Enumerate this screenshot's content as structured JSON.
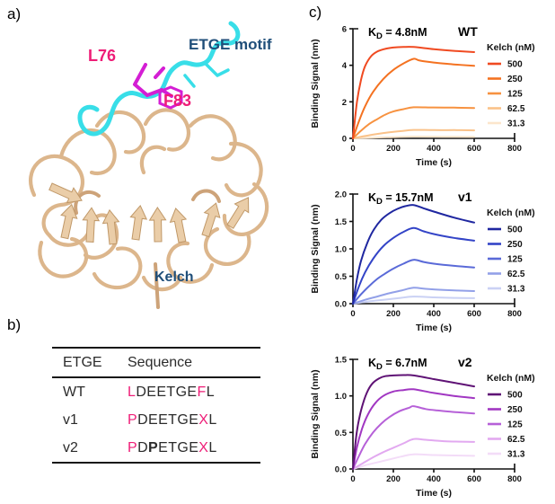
{
  "figure": {
    "panel_a_label": "a)",
    "panel_b_label": "b)",
    "panel_c_label": "c)"
  },
  "panel_a": {
    "residue_label_1": "L76",
    "motif_label": "ETGE motif",
    "residue_label_2": "F83",
    "domain_label": "Kelch",
    "colors": {
      "ribbon": "#DCB68C",
      "ribbon_fill": "#EACDA8",
      "peptide_cyan": "#38DEE8",
      "residue_magenta": "#D41ED4",
      "residue_text_pink": "#EE1D77",
      "domain_text_blue": "#1F4E79"
    }
  },
  "panel_b": {
    "headers": [
      "ETGE",
      "Sequence"
    ],
    "pink": "#EE1D77",
    "rows": [
      {
        "name": "WT",
        "segments": [
          {
            "t": "L",
            "pink": true
          },
          {
            "t": "DEETGE"
          },
          {
            "t": "F",
            "pink": true
          },
          {
            "t": "L"
          }
        ]
      },
      {
        "name": "v1",
        "segments": [
          {
            "t": "P",
            "pink": true
          },
          {
            "t": "DEETGE"
          },
          {
            "t": "X",
            "pink": true
          },
          {
            "t": "L"
          }
        ]
      },
      {
        "name": "v2",
        "segments": [
          {
            "t": "P",
            "pink": true
          },
          {
            "t": "D"
          },
          {
            "t": "P",
            "bold": true
          },
          {
            "t": "ETGE"
          },
          {
            "t": "X",
            "pink": true
          },
          {
            "t": "L"
          }
        ]
      }
    ]
  },
  "chart_data": [
    {
      "type": "line",
      "variant": "WT",
      "kd": {
        "sym": "K",
        "sub": "D",
        "rest": " = 4.8nM"
      },
      "ylabel": "Binding Signal (nm)",
      "xlabel": "Time (s)",
      "xlim": [
        0,
        800
      ],
      "ylim": [
        0,
        6
      ],
      "xticks": [
        "0",
        "200",
        "400",
        "600",
        "800"
      ],
      "yticks": [
        "0",
        "2",
        "4",
        "6"
      ],
      "legend_title": "Kelch (nM)",
      "legend_position": "right",
      "series": [
        {
          "name": "500",
          "color": "#F04A21",
          "points": [
            [
              0,
              0
            ],
            [
              20,
              2.0
            ],
            [
              40,
              3.2
            ],
            [
              60,
              3.95
            ],
            [
              90,
              4.5
            ],
            [
              120,
              4.75
            ],
            [
              160,
              4.9
            ],
            [
              200,
              4.97
            ],
            [
              250,
              5.0
            ],
            [
              300,
              5.0
            ],
            [
              400,
              4.88
            ],
            [
              500,
              4.79
            ],
            [
              600,
              4.72
            ]
          ]
        },
        {
          "name": "250",
          "color": "#F47221",
          "points": [
            [
              0,
              0
            ],
            [
              30,
              0.95
            ],
            [
              60,
              1.75
            ],
            [
              100,
              2.55
            ],
            [
              150,
              3.25
            ],
            [
              200,
              3.75
            ],
            [
              250,
              4.1
            ],
            [
              300,
              4.35
            ],
            [
              330,
              4.26
            ],
            [
              400,
              4.15
            ],
            [
              500,
              4.05
            ],
            [
              600,
              3.97
            ]
          ]
        },
        {
          "name": "125",
          "color": "#F79240",
          "points": [
            [
              0,
              0
            ],
            [
              40,
              0.42
            ],
            [
              80,
              0.78
            ],
            [
              120,
              1.05
            ],
            [
              160,
              1.3
            ],
            [
              200,
              1.47
            ],
            [
              250,
              1.6
            ],
            [
              300,
              1.7
            ],
            [
              400,
              1.69
            ],
            [
              500,
              1.68
            ],
            [
              600,
              1.66
            ]
          ]
        },
        {
          "name": "62.5",
          "color": "#FAC289",
          "points": [
            [
              0,
              0
            ],
            [
              60,
              0.13
            ],
            [
              120,
              0.24
            ],
            [
              180,
              0.33
            ],
            [
              240,
              0.4
            ],
            [
              300,
              0.46
            ],
            [
              400,
              0.45
            ],
            [
              500,
              0.45
            ],
            [
              600,
              0.44
            ]
          ]
        },
        {
          "name": "31.3",
          "color": "#FCE6CC",
          "points": [
            [
              0,
              0
            ],
            [
              100,
              0.04
            ],
            [
              200,
              0.07
            ],
            [
              300,
              0.1
            ],
            [
              450,
              0.09
            ],
            [
              600,
              0.08
            ]
          ]
        }
      ]
    },
    {
      "type": "line",
      "variant": "v1",
      "kd": {
        "sym": "K",
        "sub": "D",
        "rest": " = 15.7nM"
      },
      "ylabel": "Binding Signal (nm)",
      "xlabel": "Time (s)",
      "xlim": [
        0,
        800
      ],
      "ylim": [
        0,
        2
      ],
      "xticks": [
        "0",
        "200",
        "400",
        "600",
        "800"
      ],
      "yticks": [
        "0.0",
        "0.5",
        "1.0",
        "1.5",
        "2.0"
      ],
      "legend_title": "Kelch (nM)",
      "legend_position": "right",
      "series": [
        {
          "name": "500",
          "color": "#1F27A0",
          "points": [
            [
              0,
              0
            ],
            [
              20,
              0.45
            ],
            [
              40,
              0.78
            ],
            [
              70,
              1.1
            ],
            [
              100,
              1.33
            ],
            [
              140,
              1.53
            ],
            [
              180,
              1.65
            ],
            [
              220,
              1.73
            ],
            [
              260,
              1.78
            ],
            [
              300,
              1.8
            ],
            [
              350,
              1.74
            ],
            [
              400,
              1.68
            ],
            [
              500,
              1.57
            ],
            [
              600,
              1.48
            ]
          ]
        },
        {
          "name": "250",
          "color": "#3344C7",
          "points": [
            [
              0,
              0
            ],
            [
              30,
              0.32
            ],
            [
              60,
              0.57
            ],
            [
              100,
              0.82
            ],
            [
              150,
              1.05
            ],
            [
              200,
              1.2
            ],
            [
              250,
              1.31
            ],
            [
              300,
              1.38
            ],
            [
              350,
              1.32
            ],
            [
              400,
              1.27
            ],
            [
              500,
              1.2
            ],
            [
              600,
              1.15
            ]
          ]
        },
        {
          "name": "125",
          "color": "#5A6AD8",
          "points": [
            [
              0,
              0
            ],
            [
              40,
              0.17
            ],
            [
              80,
              0.32
            ],
            [
              120,
              0.45
            ],
            [
              160,
              0.55
            ],
            [
              200,
              0.64
            ],
            [
              250,
              0.73
            ],
            [
              300,
              0.8
            ],
            [
              350,
              0.76
            ],
            [
              400,
              0.73
            ],
            [
              500,
              0.69
            ],
            [
              600,
              0.66
            ]
          ]
        },
        {
          "name": "62.5",
          "color": "#92A0E8",
          "points": [
            [
              0,
              0
            ],
            [
              60,
              0.07
            ],
            [
              120,
              0.13
            ],
            [
              180,
              0.19
            ],
            [
              240,
              0.24
            ],
            [
              300,
              0.29
            ],
            [
              360,
              0.27
            ],
            [
              450,
              0.25
            ],
            [
              600,
              0.23
            ]
          ]
        },
        {
          "name": "31.3",
          "color": "#CAD1F4",
          "points": [
            [
              0,
              0
            ],
            [
              75,
              0.04
            ],
            [
              150,
              0.07
            ],
            [
              225,
              0.1
            ],
            [
              300,
              0.13
            ],
            [
              400,
              0.115
            ],
            [
              500,
              0.105
            ],
            [
              600,
              0.1
            ]
          ]
        }
      ]
    },
    {
      "type": "line",
      "variant": "v2",
      "kd": {
        "sym": "K",
        "sub": "D",
        "rest": " = 6.7nM"
      },
      "ylabel": "Binding Signal (nm)",
      "xlabel": "Time (s)",
      "xlim": [
        0,
        800
      ],
      "ylim": [
        0,
        1.5
      ],
      "xticks": [
        "0",
        "200",
        "400",
        "600",
        "800"
      ],
      "yticks": [
        "0.0",
        "0.5",
        "1.0",
        "1.5"
      ],
      "legend_title": "Kelch (nM)",
      "legend_position": "right",
      "series": [
        {
          "name": "500",
          "color": "#5F1275",
          "points": [
            [
              0,
              0
            ],
            [
              15,
              0.42
            ],
            [
              30,
              0.68
            ],
            [
              50,
              0.9
            ],
            [
              75,
              1.08
            ],
            [
              100,
              1.18
            ],
            [
              130,
              1.24
            ],
            [
              160,
              1.27
            ],
            [
              200,
              1.28
            ],
            [
              250,
              1.285
            ],
            [
              300,
              1.28
            ],
            [
              400,
              1.23
            ],
            [
              500,
              1.18
            ],
            [
              600,
              1.13
            ]
          ]
        },
        {
          "name": "250",
          "color": "#A137C2",
          "points": [
            [
              0,
              0
            ],
            [
              20,
              0.3
            ],
            [
              45,
              0.55
            ],
            [
              75,
              0.75
            ],
            [
              110,
              0.9
            ],
            [
              150,
              1.0
            ],
            [
              200,
              1.06
            ],
            [
              250,
              1.08
            ],
            [
              300,
              1.09
            ],
            [
              400,
              1.04
            ],
            [
              500,
              1.0
            ],
            [
              600,
              0.97
            ]
          ]
        },
        {
          "name": "125",
          "color": "#B660D8",
          "points": [
            [
              0,
              0
            ],
            [
              30,
              0.18
            ],
            [
              60,
              0.34
            ],
            [
              100,
              0.5
            ],
            [
              140,
              0.62
            ],
            [
              180,
              0.71
            ],
            [
              230,
              0.79
            ],
            [
              280,
              0.84
            ],
            [
              300,
              0.86
            ],
            [
              360,
              0.82
            ],
            [
              420,
              0.8
            ],
            [
              500,
              0.78
            ],
            [
              600,
              0.76
            ]
          ]
        },
        {
          "name": "62.5",
          "color": "#E2A9F0",
          "points": [
            [
              0,
              0
            ],
            [
              50,
              0.08
            ],
            [
              100,
              0.16
            ],
            [
              150,
              0.23
            ],
            [
              200,
              0.29
            ],
            [
              250,
              0.35
            ],
            [
              300,
              0.41
            ],
            [
              360,
              0.4
            ],
            [
              450,
              0.38
            ],
            [
              600,
              0.37
            ]
          ]
        },
        {
          "name": "31.3",
          "color": "#F3DCF8",
          "points": [
            [
              0,
              0
            ],
            [
              60,
              0.05
            ],
            [
              120,
              0.09
            ],
            [
              180,
              0.13
            ],
            [
              240,
              0.17
            ],
            [
              300,
              0.2
            ],
            [
              400,
              0.19
            ],
            [
              500,
              0.185
            ],
            [
              600,
              0.18
            ]
          ]
        }
      ]
    }
  ]
}
